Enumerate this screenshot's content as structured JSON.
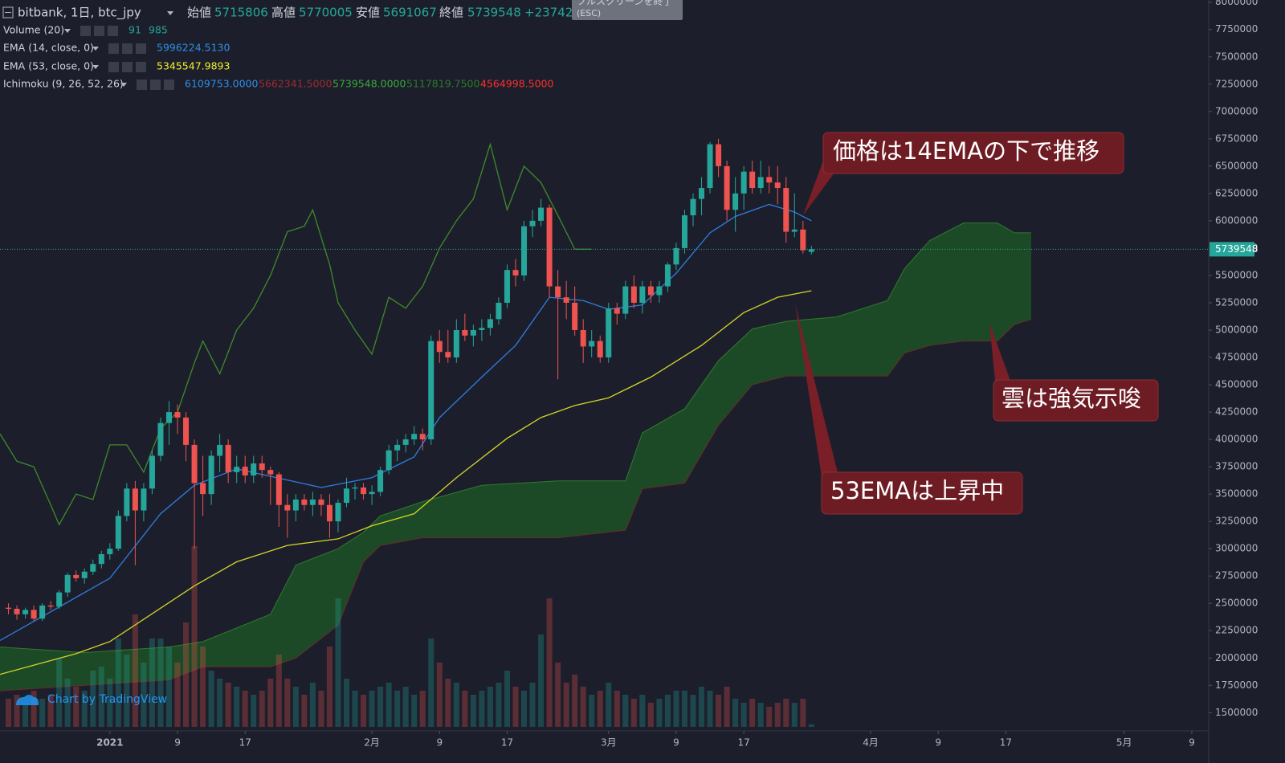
{
  "header": {
    "symbol": "bitbank, 1日, btc_jpy",
    "open_label": "始値",
    "high_label": "高値",
    "low_label": "安値",
    "close_label": "終値",
    "change": "+23742",
    "tooltip": "フルスクリーンを終了",
    "tooltip_key": "(ESC)"
  },
  "legend": [
    {
      "label": "Volume (20)",
      "values": [
        {
          "text": "985",
          "color": "#26a69a"
        }
      ]
    },
    {
      "label": "EMA (14, close, 0)",
      "values": [
        {
          "text": "5996224.5130",
          "color": "#2f8fe6"
        }
      ]
    },
    {
      "label": "EMA (53, close, 0)",
      "values": [
        {
          "text": "5345547.9893",
          "color": "#f2f22a"
        }
      ]
    },
    {
      "label": "Ichimoku (9, 26, 52, 26)",
      "values": [
        {
          "text": "6109753.0000",
          "color": "#2f8fe6"
        },
        {
          "text": "5662341.5000",
          "color": "#9c2b33"
        },
        {
          "text": "5739548.0000",
          "color": "#3aa83a"
        },
        {
          "text": "5117819.7500",
          "color": "#2a7a2a"
        },
        {
          "text": "4564998.5000",
          "color": "#ff2d2d"
        }
      ]
    }
  ],
  "watermark": "Chart by TradingView",
  "chart_data": {
    "type": "candlestick",
    "up_color": "#26a69a",
    "down_color": "#ef5350",
    "x": [
      "2020-12-20",
      "2020-12-21",
      "2020-12-22",
      "2020-12-23",
      "2020-12-24",
      "2020-12-25",
      "2020-12-26",
      "2020-12-27",
      "2020-12-28",
      "2020-12-29",
      "2020-12-30",
      "2020-12-31",
      "2021-01-01",
      "2021-01-02",
      "2021-01-03",
      "2021-01-04",
      "2021-01-05",
      "2021-01-06",
      "2021-01-07",
      "2021-01-08",
      "2021-01-09",
      "2021-01-10",
      "2021-01-11",
      "2021-01-12",
      "2021-01-13",
      "2021-01-14",
      "2021-01-15",
      "2021-01-16",
      "2021-01-17",
      "2021-01-18",
      "2021-01-19",
      "2021-01-20",
      "2021-01-21",
      "2021-01-22",
      "2021-01-23",
      "2021-01-24",
      "2021-01-25",
      "2021-01-26",
      "2021-01-27",
      "2021-01-28",
      "2021-01-29",
      "2021-01-30",
      "2021-01-31",
      "2021-02-01",
      "2021-02-02",
      "2021-02-03",
      "2021-02-04",
      "2021-02-05",
      "2021-02-06",
      "2021-02-07",
      "2021-02-08",
      "2021-02-09",
      "2021-02-10",
      "2021-02-11",
      "2021-02-12",
      "2021-02-13",
      "2021-02-14",
      "2021-02-15",
      "2021-02-16",
      "2021-02-17",
      "2021-02-18",
      "2021-02-19",
      "2021-02-20",
      "2021-02-21",
      "2021-02-22",
      "2021-02-23",
      "2021-02-24",
      "2021-02-25",
      "2021-02-26",
      "2021-02-27",
      "2021-02-28",
      "2021-03-01",
      "2021-03-02",
      "2021-03-03",
      "2021-03-04",
      "2021-03-05",
      "2021-03-06",
      "2021-03-07",
      "2021-03-08",
      "2021-03-09",
      "2021-03-10",
      "2021-03-11",
      "2021-03-12",
      "2021-03-13",
      "2021-03-14",
      "2021-03-15",
      "2021-03-16",
      "2021-03-17",
      "2021-03-18",
      "2021-03-19",
      "2021-03-20",
      "2021-03-21",
      "2021-03-22",
      "2021-03-23",
      "2021-03-24",
      "2021-03-25"
    ],
    "ohlc": [
      [
        2460000,
        2500000,
        2400000,
        2450000
      ],
      [
        2450000,
        2480000,
        2350000,
        2400000
      ],
      [
        2400000,
        2460000,
        2360000,
        2440000
      ],
      [
        2440000,
        2480000,
        2340000,
        2360000
      ],
      [
        2360000,
        2500000,
        2340000,
        2480000
      ],
      [
        2480000,
        2520000,
        2440000,
        2470000
      ],
      [
        2470000,
        2620000,
        2450000,
        2600000
      ],
      [
        2600000,
        2780000,
        2560000,
        2760000
      ],
      [
        2760000,
        2800000,
        2700000,
        2730000
      ],
      [
        2730000,
        2820000,
        2680000,
        2790000
      ],
      [
        2790000,
        2900000,
        2760000,
        2860000
      ],
      [
        2860000,
        2980000,
        2820000,
        2950000
      ],
      [
        2950000,
        3050000,
        2900000,
        3000000
      ],
      [
        3000000,
        3350000,
        2980000,
        3300000
      ],
      [
        3300000,
        3600000,
        3250000,
        3550000
      ],
      [
        3550000,
        3620000,
        2850000,
        3350000
      ],
      [
        3350000,
        3600000,
        3250000,
        3550000
      ],
      [
        3550000,
        3900000,
        3500000,
        3850000
      ],
      [
        3850000,
        4200000,
        3800000,
        4150000
      ],
      [
        4150000,
        4350000,
        3950000,
        4250000
      ],
      [
        4250000,
        4320000,
        4050000,
        4200000
      ],
      [
        4200000,
        4250000,
        3800000,
        3950000
      ],
      [
        3950000,
        4000000,
        3000000,
        3600000
      ],
      [
        3600000,
        3850000,
        3300000,
        3500000
      ],
      [
        3500000,
        3900000,
        3400000,
        3850000
      ],
      [
        3850000,
        4050000,
        3700000,
        3950000
      ],
      [
        3950000,
        4000000,
        3600000,
        3700000
      ],
      [
        3700000,
        3850000,
        3600000,
        3750000
      ],
      [
        3750000,
        3850000,
        3600000,
        3670000
      ],
      [
        3670000,
        3850000,
        3600000,
        3780000
      ],
      [
        3780000,
        3850000,
        3650000,
        3720000
      ],
      [
        3720000,
        3750000,
        3400000,
        3680000
      ],
      [
        3680000,
        3700000,
        3200000,
        3400000
      ],
      [
        3400000,
        3500000,
        3100000,
        3350000
      ],
      [
        3350000,
        3500000,
        3250000,
        3450000
      ],
      [
        3450000,
        3500000,
        3350000,
        3400000
      ],
      [
        3400000,
        3520000,
        3300000,
        3450000
      ],
      [
        3450000,
        3500000,
        3300000,
        3400000
      ],
      [
        3400000,
        3500000,
        3100000,
        3250000
      ],
      [
        3250000,
        3450000,
        3150000,
        3420000
      ],
      [
        3420000,
        3650000,
        3380000,
        3550000
      ],
      [
        3550000,
        3600000,
        3450000,
        3560000
      ],
      [
        3560000,
        3600000,
        3450000,
        3500000
      ],
      [
        3500000,
        3580000,
        3400000,
        3520000
      ],
      [
        3520000,
        3750000,
        3480000,
        3720000
      ],
      [
        3720000,
        3950000,
        3680000,
        3900000
      ],
      [
        3900000,
        4000000,
        3800000,
        3950000
      ],
      [
        3950000,
        4050000,
        3880000,
        4000000
      ],
      [
        4000000,
        4120000,
        3950000,
        4050000
      ],
      [
        4050000,
        4100000,
        3900000,
        4000000
      ],
      [
        4000000,
        4950000,
        3950000,
        4900000
      ],
      [
        4900000,
        5000000,
        4700000,
        4800000
      ],
      [
        4800000,
        5000000,
        4700000,
        4750000
      ],
      [
        4750000,
        5100000,
        4700000,
        5000000
      ],
      [
        5000000,
        5150000,
        4900000,
        4950000
      ],
      [
        4950000,
        5050000,
        4850000,
        5000000
      ],
      [
        5000000,
        5100000,
        4900000,
        5020000
      ],
      [
        5020000,
        5150000,
        4950000,
        5100000
      ],
      [
        5100000,
        5300000,
        5050000,
        5250000
      ],
      [
        5250000,
        5600000,
        5200000,
        5550000
      ],
      [
        5550000,
        5650000,
        5400000,
        5500000
      ],
      [
        5500000,
        6000000,
        5450000,
        5950000
      ],
      [
        5950000,
        6100000,
        5850000,
        6000000
      ],
      [
        6000000,
        6200000,
        5950000,
        6120000
      ],
      [
        6120000,
        6150000,
        5300000,
        5400000
      ],
      [
        5400000,
        5550000,
        4550000,
        5300000
      ],
      [
        5300000,
        5450000,
        5100000,
        5250000
      ],
      [
        5250000,
        5400000,
        4950000,
        5000000
      ],
      [
        5000000,
        5100000,
        4700000,
        4850000
      ],
      [
        4850000,
        5000000,
        4750000,
        4900000
      ],
      [
        4900000,
        4950000,
        4700000,
        4750000
      ],
      [
        4750000,
        5250000,
        4700000,
        5200000
      ],
      [
        5200000,
        5250000,
        5050000,
        5150000
      ],
      [
        5150000,
        5450000,
        5100000,
        5400000
      ],
      [
        5400000,
        5500000,
        5200000,
        5250000
      ],
      [
        5250000,
        5450000,
        5150000,
        5400000
      ],
      [
        5400000,
        5450000,
        5250000,
        5320000
      ],
      [
        5320000,
        5450000,
        5250000,
        5400000
      ],
      [
        5400000,
        5620000,
        5350000,
        5600000
      ],
      [
        5600000,
        5800000,
        5550000,
        5750000
      ],
      [
        5750000,
        6100000,
        5700000,
        6050000
      ],
      [
        6050000,
        6250000,
        5950000,
        6200000
      ],
      [
        6200000,
        6400000,
        6050000,
        6300000
      ],
      [
        6300000,
        6720000,
        6250000,
        6700000
      ],
      [
        6700000,
        6750000,
        6400000,
        6500000
      ],
      [
        6500000,
        6550000,
        6000000,
        6100000
      ],
      [
        6100000,
        6400000,
        5900000,
        6250000
      ],
      [
        6250000,
        6500000,
        6100000,
        6450000
      ],
      [
        6450000,
        6550000,
        6250000,
        6300000
      ],
      [
        6300000,
        6550000,
        6250000,
        6400000
      ],
      [
        6400000,
        6500000,
        6250000,
        6350000
      ],
      [
        6350000,
        6500000,
        6150000,
        6300000
      ],
      [
        6300000,
        6400000,
        5800000,
        5900000
      ],
      [
        5900000,
        6250000,
        5850000,
        5920000
      ],
      [
        5920000,
        6000000,
        5700000,
        5730000
      ],
      [
        5715806,
        5770005,
        5691067,
        5739548
      ]
    ],
    "volume": [
      980,
      1120,
      840,
      1260,
      980,
      1120,
      2380,
      1680,
      1400,
      1260,
      1960,
      2100,
      1680,
      3080,
      2520,
      3920,
      2240,
      3080,
      3080,
      2800,
      2240,
      3640,
      6300,
      2800,
      1960,
      1680,
      1540,
      1400,
      1260,
      1120,
      1260,
      1680,
      2520,
      1680,
      1400,
      1120,
      1540,
      1260,
      2800,
      4480,
      1680,
      1260,
      1120,
      1260,
      1400,
      1540,
      1260,
      1400,
      1120,
      1260,
      3080,
      2240,
      1680,
      1540,
      1260,
      1120,
      1260,
      1400,
      1540,
      1960,
      1400,
      1260,
      1540,
      3220,
      4480,
      2240,
      1540,
      1820,
      1400,
      1120,
      1260,
      1540,
      1260,
      1120,
      980,
      1120,
      840,
      980,
      1120,
      1260,
      1260,
      1120,
      1400,
      1260,
      1120,
      1400,
      980,
      840,
      980,
      840,
      700,
      840,
      980,
      840,
      980,
      91
    ],
    "lines": [
      {
        "color": "#2f7de1",
        "x": [
          "2020-12-19",
          "2021-01-01",
          "2021-01-07",
          "2021-01-11",
          "2021-01-16",
          "2021-01-26",
          "2021-02-01",
          "2021-02-06",
          "2021-02-09",
          "2021-02-14",
          "2021-02-18",
          "2021-02-22",
          "2021-02-26",
          "2021-03-01",
          "2021-03-05",
          "2021-03-09",
          "2021-03-13",
          "2021-03-16",
          "2021-03-20",
          "2021-03-23",
          "2021-03-25"
        ],
        "values": [
          2160000,
          2730000,
          3320000,
          3580000,
          3730000,
          3560000,
          3650000,
          3840000,
          4200000,
          4570000,
          4860000,
          5300000,
          5270000,
          5190000,
          5230000,
          5520000,
          5890000,
          6040000,
          6150000,
          6080000,
          6000000
        ]
      },
      {
        "color": "#d4d42a",
        "x": [
          "2020-12-19",
          "2020-12-28",
          "2021-01-01",
          "2021-01-11",
          "2021-01-16",
          "2021-01-22",
          "2021-01-28",
          "2021-02-01",
          "2021-02-06",
          "2021-02-11",
          "2021-02-17",
          "2021-02-21",
          "2021-02-25",
          "2021-03-01",
          "2021-03-06",
          "2021-03-12",
          "2021-03-17",
          "2021-03-21",
          "2021-03-25"
        ],
        "values": [
          1850000,
          2040000,
          2150000,
          2660000,
          2880000,
          3030000,
          3090000,
          3210000,
          3320000,
          3650000,
          4010000,
          4200000,
          4310000,
          4380000,
          4570000,
          4860000,
          5160000,
          5300000,
          5360000
        ]
      },
      {
        "color": "#3f8a2a",
        "x": [
          "2020-12-19",
          "2020-12-21",
          "2020-12-23",
          "2020-12-25",
          "2020-12-26",
          "2020-12-28",
          "2020-12-30",
          "2021-01-01",
          "2021-01-03",
          "2021-01-05",
          "2021-01-07",
          "2021-01-09",
          "2021-01-11",
          "2021-01-12",
          "2021-01-14",
          "2021-01-16",
          "2021-01-18",
          "2021-01-20",
          "2021-01-22",
          "2021-01-24",
          "2021-01-25",
          "2021-01-27",
          "2021-01-28",
          "2021-01-30",
          "2021-02-01",
          "2021-02-03",
          "2021-02-05",
          "2021-02-07",
          "2021-02-09",
          "2021-02-11",
          "2021-02-13",
          "2021-02-15",
          "2021-02-17",
          "2021-02-19",
          "2021-02-21",
          "2021-02-23",
          "2021-02-25",
          "2021-02-27"
        ],
        "values": [
          4050000,
          3800000,
          3750000,
          3400000,
          3220000,
          3500000,
          3450000,
          3950000,
          3950000,
          3700000,
          4100000,
          4250000,
          4700000,
          4900000,
          4600000,
          5000000,
          5200000,
          5500000,
          5900000,
          5950000,
          6100000,
          5600000,
          5250000,
          5000000,
          4780000,
          5300000,
          5200000,
          5400000,
          5750000,
          6000000,
          6200000,
          6700000,
          6100000,
          6500000,
          6350000,
          6050000,
          5740000,
          5740000
        ]
      }
    ],
    "cloud": {
      "color": "#1e5a26",
      "x": [
        "2020-12-19",
        "2020-12-29",
        "2021-01-08",
        "2021-01-12",
        "2021-01-20",
        "2021-01-23",
        "2021-01-28",
        "2021-01-31",
        "2021-02-02",
        "2021-02-07",
        "2021-02-14",
        "2021-02-23",
        "2021-03-03",
        "2021-03-05",
        "2021-03-10",
        "2021-03-14",
        "2021-03-18",
        "2021-03-22",
        "2021-03-28",
        "2021-04-03",
        "2021-04-05",
        "2021-04-08",
        "2021-04-12",
        "2021-04-16",
        "2021-04-18",
        "2021-04-20"
      ],
      "upper": [
        2100000,
        2050000,
        2100000,
        2150000,
        2400000,
        2850000,
        3000000,
        3150000,
        3300000,
        3430000,
        3580000,
        3620000,
        3620000,
        4060000,
        4280000,
        4720000,
        5010000,
        5080000,
        5120000,
        5270000,
        5560000,
        5820000,
        5980000,
        5980000,
        5890000,
        5890000
      ],
      "lower": [
        1700000,
        1750000,
        1800000,
        1920000,
        1920000,
        2000000,
        2300000,
        2880000,
        3030000,
        3100000,
        3100000,
        3100000,
        3170000,
        3550000,
        3600000,
        4130000,
        4500000,
        4580000,
        4580000,
        4580000,
        4790000,
        4860000,
        4900000,
        4900000,
        5050000,
        5100000
      ]
    },
    "ylim": [
      1370000,
      8020000
    ],
    "yticks": [
      1500000,
      1750000,
      2000000,
      2250000,
      2500000,
      2750000,
      3000000,
      3250000,
      3500000,
      3750000,
      4000000,
      4250000,
      4500000,
      4750000,
      5000000,
      5250000,
      5500000,
      5750000,
      6000000,
      6250000,
      6500000,
      6750000,
      7000000,
      7250000,
      7500000,
      7750000,
      8000000
    ],
    "xlim": [
      "2020-12-19",
      "2021-05-11"
    ],
    "xticks": [
      {
        "value": "2021-01-01",
        "label": "2021"
      },
      {
        "value": "2021-01-09",
        "label": "9"
      },
      {
        "value": "2021-01-17",
        "label": "17"
      },
      {
        "value": "2021-02-01",
        "label": "2月"
      },
      {
        "value": "2021-02-09",
        "label": "9"
      },
      {
        "value": "2021-02-17",
        "label": "17"
      },
      {
        "value": "2021-03-01",
        "label": "3月"
      },
      {
        "value": "2021-03-09",
        "label": "9"
      },
      {
        "value": "2021-03-17",
        "label": "17"
      },
      {
        "value": "2021-04-01",
        "label": "4月"
      },
      {
        "value": "2021-04-09",
        "label": "9"
      },
      {
        "value": "2021-04-17",
        "label": "17"
      },
      {
        "value": "2021-05-01",
        "label": "5月"
      },
      {
        "value": "2021-05-09",
        "label": "9"
      }
    ],
    "annotations": [
      "価格は14EMAの下で推移",
      "雲は強気示唆",
      "53EMAは上昇中"
    ]
  }
}
